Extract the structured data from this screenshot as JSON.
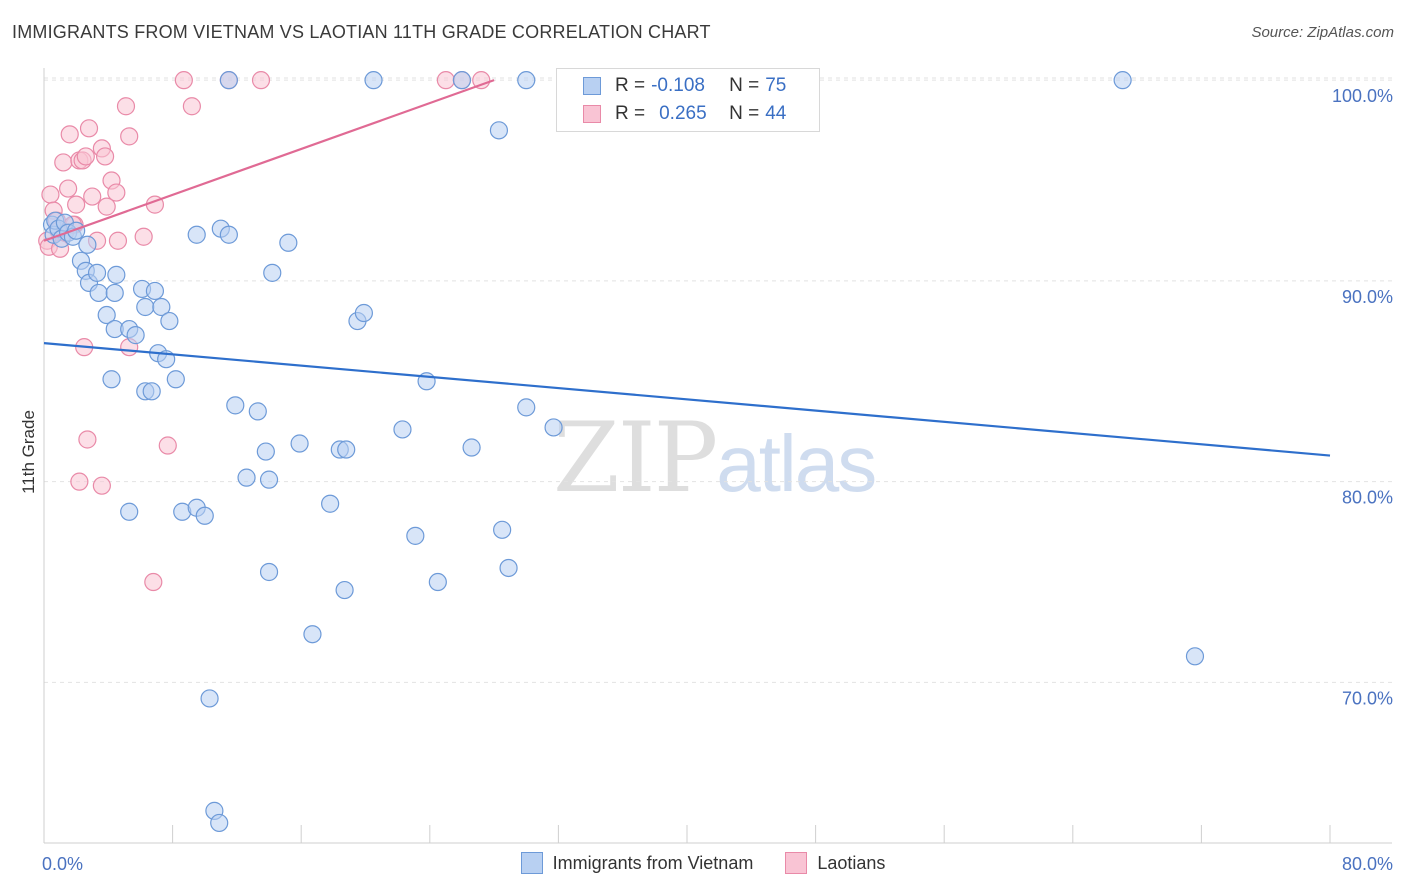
{
  "title": "IMMIGRANTS FROM VIETNAM VS LAOTIAN 11TH GRADE CORRELATION CHART",
  "source": "Source: ZipAtlas.com",
  "watermark": {
    "part1": "ZIP",
    "part2": "atlas"
  },
  "colors": {
    "blue_fill": "#b8d0f2",
    "blue_stroke": "#6d9ad8",
    "blue_line": "#2e6fcc",
    "pink_fill": "#f9c4d4",
    "pink_stroke": "#e98aa8",
    "pink_line": "#e06a94",
    "grid": "#e2e2e2",
    "tick_text": "#4a72c0"
  },
  "legend": {
    "rows": [
      {
        "r_label": "R =",
        "r_value": "-0.108",
        "n_label": "N =",
        "n_value": "75"
      },
      {
        "r_label": "R =",
        "r_value": "0.265",
        "n_label": "N =",
        "n_value": "44"
      }
    ]
  },
  "bottom_legend": [
    "Immigrants from Vietnam",
    "Laotians"
  ],
  "chart_data": {
    "type": "scatter",
    "title": "IMMIGRANTS FROM VIETNAM VS LAOTIAN 11TH GRADE CORRELATION CHART",
    "xlabel": "",
    "ylabel": "11th Grade",
    "xlim": [
      0,
      80
    ],
    "ylim": [
      62,
      102
    ],
    "x_tick_labels": [
      "0.0%",
      "80.0%"
    ],
    "y_ticks": [
      70,
      80,
      90,
      100
    ],
    "y_tick_labels": [
      "70.0%",
      "80.0%",
      "90.0%",
      "100.0%"
    ],
    "grid": true,
    "legend_position": "top-center",
    "series": [
      {
        "name": "Immigrants from Vietnam",
        "r": -0.108,
        "n": 75,
        "trend": [
          [
            0,
            86.9
          ],
          [
            80,
            81.3
          ]
        ],
        "points": [
          [
            0.5,
            92.8
          ],
          [
            0.6,
            92.3
          ],
          [
            0.7,
            93.0
          ],
          [
            0.9,
            92.6
          ],
          [
            1.1,
            92.1
          ],
          [
            1.3,
            92.9
          ],
          [
            1.5,
            92.4
          ],
          [
            1.8,
            92.2
          ],
          [
            2.0,
            92.5
          ],
          [
            2.3,
            91.0
          ],
          [
            2.7,
            91.8
          ],
          [
            2.6,
            90.5
          ],
          [
            2.8,
            89.9
          ],
          [
            3.3,
            90.4
          ],
          [
            3.4,
            89.4
          ],
          [
            3.9,
            88.3
          ],
          [
            4.4,
            89.4
          ],
          [
            4.4,
            87.6
          ],
          [
            4.5,
            90.3
          ],
          [
            5.3,
            87.6
          ],
          [
            6.1,
            89.6
          ],
          [
            6.3,
            88.7
          ],
          [
            5.7,
            87.3
          ],
          [
            6.9,
            89.5
          ],
          [
            7.3,
            88.7
          ],
          [
            7.1,
            86.4
          ],
          [
            7.8,
            88.0
          ],
          [
            7.6,
            86.1
          ],
          [
            8.2,
            85.1
          ],
          [
            6.3,
            84.5
          ],
          [
            6.7,
            84.5
          ],
          [
            4.2,
            85.1
          ],
          [
            5.3,
            78.5
          ],
          [
            8.6,
            78.5
          ],
          [
            9.5,
            78.7
          ],
          [
            10.0,
            78.3
          ],
          [
            11.0,
            92.6
          ],
          [
            11.5,
            92.3
          ],
          [
            9.5,
            92.3
          ],
          [
            14.2,
            90.4
          ],
          [
            15.2,
            91.9
          ],
          [
            11.9,
            83.8
          ],
          [
            13.3,
            83.5
          ],
          [
            13.8,
            81.5
          ],
          [
            14.0,
            80.1
          ],
          [
            12.6,
            80.2
          ],
          [
            15.9,
            81.9
          ],
          [
            17.8,
            78.9
          ],
          [
            18.4,
            81.6
          ],
          [
            18.8,
            81.6
          ],
          [
            19.5,
            88.0
          ],
          [
            19.9,
            88.4
          ],
          [
            22.3,
            82.6
          ],
          [
            23.1,
            77.3
          ],
          [
            24.5,
            75.0
          ],
          [
            23.8,
            85.0
          ],
          [
            26.6,
            81.7
          ],
          [
            28.5,
            77.6
          ],
          [
            28.9,
            75.7
          ],
          [
            30.0,
            83.7
          ],
          [
            31.7,
            82.7
          ],
          [
            14.0,
            75.5
          ],
          [
            16.7,
            72.4
          ],
          [
            18.7,
            74.6
          ],
          [
            10.3,
            69.2
          ],
          [
            10.6,
            63.6
          ],
          [
            10.9,
            63.0
          ],
          [
            11.5,
            100.0
          ],
          [
            20.5,
            100.0
          ],
          [
            26.0,
            100.0
          ],
          [
            28.3,
            97.5
          ],
          [
            44.5,
            100.0
          ],
          [
            71.6,
            71.3
          ],
          [
            67.1,
            100.0
          ],
          [
            30.0,
            100.0
          ]
        ]
      },
      {
        "name": "Laotians",
        "r": 0.265,
        "n": 44,
        "trend": [
          [
            0,
            92.0
          ],
          [
            28,
            100.0
          ]
        ],
        "points": [
          [
            0.2,
            92.0
          ],
          [
            0.3,
            91.7
          ],
          [
            0.4,
            94.3
          ],
          [
            0.6,
            93.5
          ],
          [
            0.8,
            93.0
          ],
          [
            0.9,
            92.5
          ],
          [
            1.0,
            91.6
          ],
          [
            1.2,
            95.9
          ],
          [
            1.3,
            92.4
          ],
          [
            1.5,
            94.6
          ],
          [
            1.6,
            97.3
          ],
          [
            1.9,
            92.8
          ],
          [
            2.0,
            93.8
          ],
          [
            2.2,
            96.0
          ],
          [
            2.4,
            96.0
          ],
          [
            2.6,
            96.2
          ],
          [
            2.8,
            97.6
          ],
          [
            3.0,
            94.2
          ],
          [
            3.3,
            92.0
          ],
          [
            3.6,
            96.6
          ],
          [
            3.8,
            96.2
          ],
          [
            3.9,
            93.7
          ],
          [
            4.2,
            95.0
          ],
          [
            4.5,
            94.4
          ],
          [
            5.1,
            98.7
          ],
          [
            5.3,
            97.2
          ],
          [
            4.6,
            92.0
          ],
          [
            6.2,
            92.2
          ],
          [
            6.9,
            93.8
          ],
          [
            8.7,
            100.0
          ],
          [
            11.5,
            100.0
          ],
          [
            9.2,
            98.7
          ],
          [
            13.5,
            100.0
          ],
          [
            25.0,
            100.0
          ],
          [
            26.0,
            100.0
          ],
          [
            27.2,
            100.0
          ],
          [
            2.5,
            86.7
          ],
          [
            5.3,
            86.7
          ],
          [
            2.7,
            82.1
          ],
          [
            7.7,
            81.8
          ],
          [
            2.2,
            80.0
          ],
          [
            3.6,
            79.8
          ],
          [
            6.8,
            75.0
          ],
          [
            1.8,
            92.8
          ]
        ]
      }
    ]
  }
}
